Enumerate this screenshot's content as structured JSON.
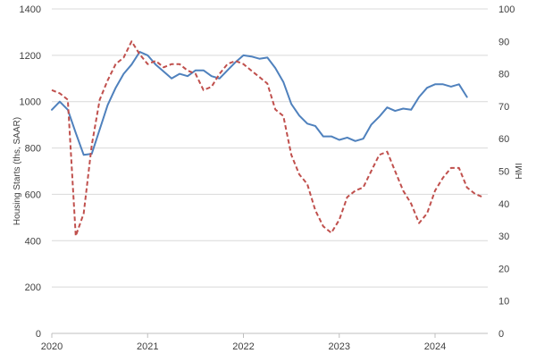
{
  "chart_data": {
    "type": "line",
    "title": "",
    "xlabel": "",
    "ylabel": "Housing Starts (ths, SAAR)",
    "y2label": "HMI",
    "xlim": [
      2020.0,
      2024.55
    ],
    "xticks": [
      2020,
      2021,
      2022,
      2023,
      2024
    ],
    "ylim": [
      0,
      1400
    ],
    "yticks": [
      0,
      200,
      400,
      600,
      800,
      1000,
      1200,
      1400
    ],
    "y2lim": [
      0,
      100
    ],
    "y2ticks": [
      0,
      10,
      20,
      30,
      40,
      50,
      60,
      70,
      80,
      90,
      100
    ],
    "grid": "horizontal",
    "legend": "none",
    "series": [
      {
        "axis": "left",
        "style": "solid",
        "color": "#4f81bd",
        "points": [
          [
            2020.0,
            965
          ],
          [
            2020.083,
            1000
          ],
          [
            2020.167,
            965
          ],
          [
            2020.25,
            865
          ],
          [
            2020.333,
            770
          ],
          [
            2020.417,
            775
          ],
          [
            2020.5,
            880
          ],
          [
            2020.583,
            985
          ],
          [
            2020.667,
            1060
          ],
          [
            2020.75,
            1120
          ],
          [
            2020.833,
            1160
          ],
          [
            2020.917,
            1215
          ],
          [
            2021.0,
            1200
          ],
          [
            2021.083,
            1160
          ],
          [
            2021.167,
            1130
          ],
          [
            2021.25,
            1100
          ],
          [
            2021.333,
            1120
          ],
          [
            2021.417,
            1110
          ],
          [
            2021.5,
            1135
          ],
          [
            2021.583,
            1135
          ],
          [
            2021.667,
            1110
          ],
          [
            2021.75,
            1100
          ],
          [
            2021.833,
            1135
          ],
          [
            2021.917,
            1170
          ],
          [
            2022.0,
            1200
          ],
          [
            2022.083,
            1195
          ],
          [
            2022.167,
            1185
          ],
          [
            2022.25,
            1190
          ],
          [
            2022.333,
            1145
          ],
          [
            2022.417,
            1085
          ],
          [
            2022.5,
            990
          ],
          [
            2022.583,
            940
          ],
          [
            2022.667,
            905
          ],
          [
            2022.75,
            895
          ],
          [
            2022.833,
            850
          ],
          [
            2022.917,
            850
          ],
          [
            2023.0,
            835
          ],
          [
            2023.083,
            845
          ],
          [
            2023.167,
            830
          ],
          [
            2023.25,
            840
          ],
          [
            2023.333,
            900
          ],
          [
            2023.417,
            935
          ],
          [
            2023.5,
            975
          ],
          [
            2023.583,
            960
          ],
          [
            2023.667,
            970
          ],
          [
            2023.75,
            965
          ],
          [
            2023.833,
            1020
          ],
          [
            2023.917,
            1060
          ],
          [
            2024.0,
            1075
          ],
          [
            2024.083,
            1075
          ],
          [
            2024.167,
            1065
          ],
          [
            2024.25,
            1075
          ],
          [
            2024.333,
            1020
          ]
        ]
      },
      {
        "axis": "right",
        "style": "dashed",
        "color": "#c0504d",
        "points": [
          [
            2020.0,
            75
          ],
          [
            2020.083,
            74
          ],
          [
            2020.167,
            72
          ],
          [
            2020.25,
            30
          ],
          [
            2020.333,
            37
          ],
          [
            2020.417,
            58
          ],
          [
            2020.5,
            72
          ],
          [
            2020.583,
            78
          ],
          [
            2020.667,
            83
          ],
          [
            2020.75,
            85
          ],
          [
            2020.833,
            90
          ],
          [
            2020.917,
            86
          ],
          [
            2021.0,
            83
          ],
          [
            2021.083,
            84
          ],
          [
            2021.167,
            82
          ],
          [
            2021.25,
            83
          ],
          [
            2021.333,
            83
          ],
          [
            2021.417,
            81
          ],
          [
            2021.5,
            80
          ],
          [
            2021.583,
            75
          ],
          [
            2021.667,
            76
          ],
          [
            2021.75,
            80
          ],
          [
            2021.833,
            83
          ],
          [
            2021.917,
            84
          ],
          [
            2022.0,
            83
          ],
          [
            2022.083,
            81
          ],
          [
            2022.167,
            79
          ],
          [
            2022.25,
            77
          ],
          [
            2022.333,
            69
          ],
          [
            2022.417,
            67
          ],
          [
            2022.5,
            55
          ],
          [
            2022.583,
            49
          ],
          [
            2022.667,
            46
          ],
          [
            2022.75,
            38
          ],
          [
            2022.833,
            33
          ],
          [
            2022.917,
            31
          ],
          [
            2023.0,
            35
          ],
          [
            2023.083,
            42
          ],
          [
            2023.167,
            44
          ],
          [
            2023.25,
            45
          ],
          [
            2023.333,
            50
          ],
          [
            2023.417,
            55
          ],
          [
            2023.5,
            56
          ],
          [
            2023.583,
            50
          ],
          [
            2023.667,
            44
          ],
          [
            2023.75,
            40
          ],
          [
            2023.833,
            34
          ],
          [
            2023.917,
            37
          ],
          [
            2024.0,
            44
          ],
          [
            2024.083,
            48
          ],
          [
            2024.167,
            51
          ],
          [
            2024.25,
            51
          ],
          [
            2024.333,
            45
          ],
          [
            2024.417,
            43
          ],
          [
            2024.5,
            42
          ]
        ]
      }
    ]
  }
}
